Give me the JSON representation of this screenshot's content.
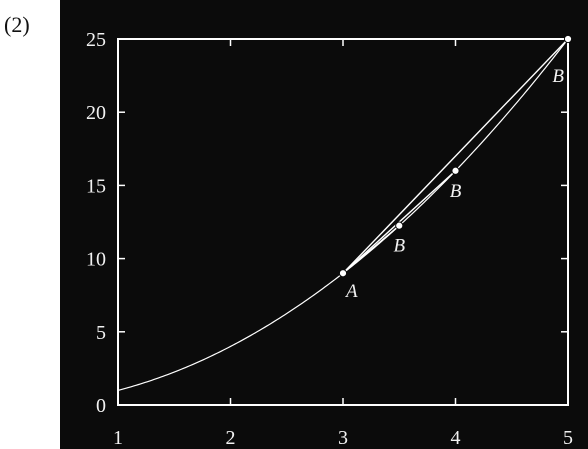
{
  "panel_label": "(2)",
  "chart_data": {
    "type": "line",
    "title": "",
    "xlabel": "",
    "ylabel": "",
    "xlim": [
      1,
      5
    ],
    "ylim": [
      0,
      25
    ],
    "x_ticks": [
      1,
      2,
      3,
      4,
      5
    ],
    "y_ticks": [
      0,
      5,
      10,
      15,
      20,
      25
    ],
    "grid": false,
    "background_color": "#0b0b0b",
    "line_color": "#ffffff",
    "curve": {
      "function": "y = x^2",
      "x_range": [
        1,
        5
      ]
    },
    "point_A": {
      "label": "A",
      "x": 3,
      "y": 9
    },
    "points_B": [
      {
        "label": "B",
        "x": 3.5,
        "y": 12.25
      },
      {
        "label": "B",
        "x": 4,
        "y": 16
      },
      {
        "label": "B",
        "x": 5,
        "y": 25
      }
    ]
  }
}
